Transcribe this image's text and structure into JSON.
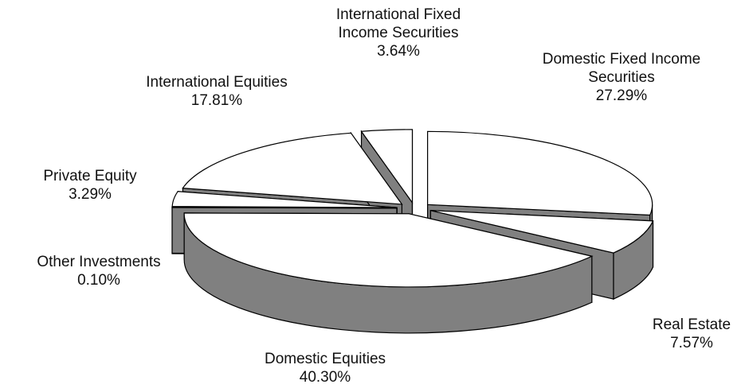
{
  "chart_data": {
    "type": "pie3d",
    "categories": [
      "Domestic Fixed Income Securities",
      "Real Estate",
      "Domestic Equities",
      "Other Investments",
      "Private Equity",
      "International Equities",
      "International Fixed Income Securities"
    ],
    "values": [
      27.29,
      7.57,
      40.3,
      0.1,
      3.29,
      17.81,
      3.64
    ],
    "value_labels": [
      "27.29%",
      "7.57%",
      "40.30%",
      "0.10%",
      "3.29%",
      "17.81%",
      "3.64%"
    ],
    "color": "#ffffff",
    "side_color": "#808080"
  }
}
